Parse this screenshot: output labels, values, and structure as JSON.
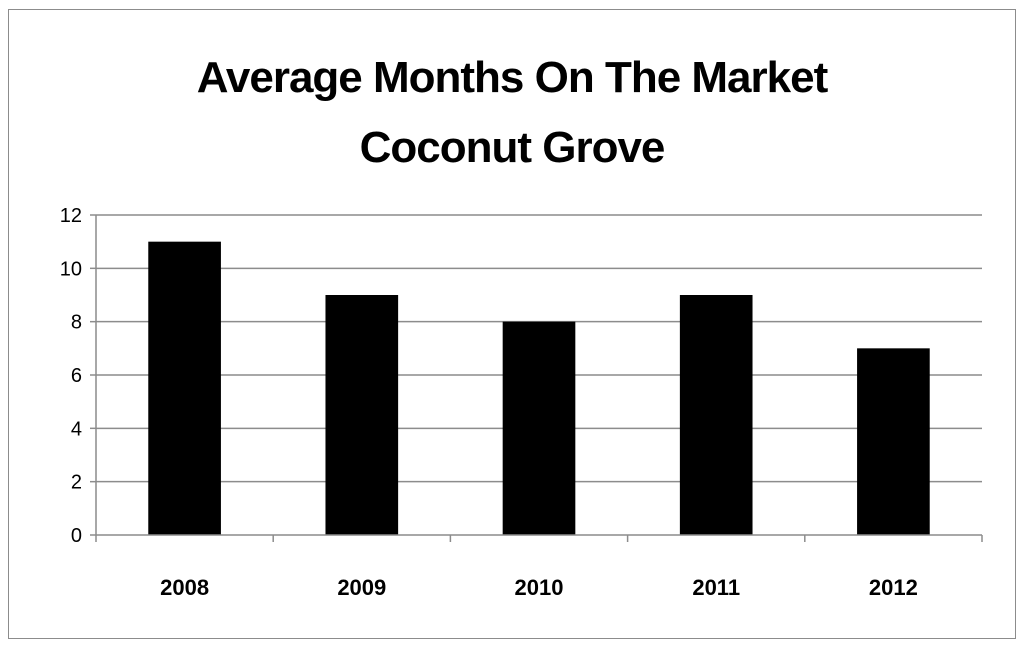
{
  "chart_data": {
    "type": "bar",
    "title": "Average Months On The Market",
    "subtitle": "Coconut Grove",
    "categories": [
      "2008",
      "2009",
      "2010",
      "2011",
      "2012"
    ],
    "values": [
      11,
      9,
      8,
      9,
      7
    ],
    "xlabel": "",
    "ylabel": "",
    "ylim": [
      0,
      12
    ],
    "yticks": [
      0,
      2,
      4,
      6,
      8,
      10,
      12
    ],
    "grid": true,
    "legend": "none",
    "bar_color": "#000000",
    "grid_color": "#8c8c8c"
  }
}
